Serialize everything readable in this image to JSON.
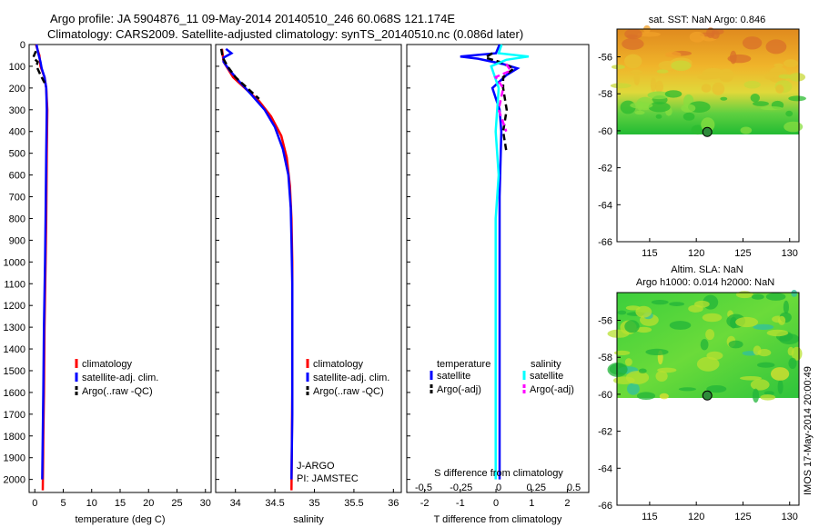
{
  "title": {
    "line1": "Argo profile: JA 5904876_11 09-May-2014 20140510_246 60.068S 121.174E",
    "line2": "Climatology: CARS2009. Satellite-adjusted climatology: synTS_20140510.nc (0.086d later)"
  },
  "credit": "IMOS 17-May-2014 20:00:49",
  "colors": {
    "climatology": "#ff0000",
    "satellite": "#0000ff",
    "argo": "#000000",
    "salinity_satellite": "#00ffff",
    "salinity_argo": "#ff00ff"
  },
  "chart_data": [
    {
      "type": "line",
      "name": "temperature",
      "xlabel": "temperature (deg C)",
      "ylabel": "",
      "xlim": [
        -1,
        31
      ],
      "ylim": [
        2060,
        0
      ],
      "xticks": [
        0,
        5,
        10,
        15,
        20,
        25,
        30
      ],
      "yticks": [
        0,
        100,
        200,
        300,
        400,
        500,
        600,
        700,
        800,
        900,
        1000,
        1100,
        1200,
        1300,
        1400,
        1500,
        1600,
        1700,
        1800,
        1900,
        2000
      ],
      "legend": [
        "climatology",
        "satellite-adj. clim.",
        "Argo(..raw -QC)"
      ],
      "series": [
        {
          "name": "climatology",
          "color": "#ff0000",
          "dash": false,
          "points": [
            [
              0.2,
              0
            ],
            [
              0.8,
              50
            ],
            [
              1.0,
              100
            ],
            [
              1.7,
              150
            ],
            [
              2.0,
              200
            ],
            [
              2.2,
              300
            ],
            [
              2.1,
              500
            ],
            [
              2.0,
              800
            ],
            [
              1.9,
              1000
            ],
            [
              1.7,
              1300
            ],
            [
              1.6,
              1600
            ],
            [
              1.5,
              1800
            ],
            [
              1.4,
              2050
            ]
          ]
        },
        {
          "name": "satellite-adj. clim.",
          "color": "#0000ff",
          "dash": false,
          "points": [
            [
              0.3,
              0
            ],
            [
              0.6,
              40
            ],
            [
              1.0,
              80
            ],
            [
              1.2,
              110
            ],
            [
              1.7,
              150
            ],
            [
              2.0,
              200
            ],
            [
              2.1,
              300
            ],
            [
              2.0,
              500
            ],
            [
              1.9,
              800
            ],
            [
              1.8,
              1000
            ],
            [
              1.6,
              1300
            ],
            [
              1.5,
              1600
            ],
            [
              1.4,
              1800
            ],
            [
              1.3,
              2000
            ]
          ]
        },
        {
          "name": "Argo(..raw -QC)",
          "color": "#000000",
          "dash": true,
          "points": [
            [
              0.2,
              30
            ],
            [
              -0.3,
              60
            ],
            [
              0.5,
              80
            ],
            [
              0.3,
              100
            ],
            [
              1.0,
              140
            ],
            [
              1.8,
              180
            ]
          ]
        }
      ]
    },
    {
      "type": "line",
      "name": "salinity",
      "xlabel": "salinity",
      "xlim": [
        33.75,
        36.1
      ],
      "ylim": [
        2060,
        0
      ],
      "xticks": [
        34,
        34.5,
        35,
        35.5,
        36
      ],
      "xticklabels": [
        "34",
        "34.5",
        "35",
        "35.5",
        "36"
      ],
      "legend": [
        "climatology",
        "satellite-adj. clim.",
        "Argo(..raw -QC)"
      ],
      "annotation": [
        "J-ARGO",
        "PI: JAMSTEC"
      ],
      "series": [
        {
          "name": "climatology",
          "color": "#ff0000",
          "dash": false,
          "points": [
            [
              33.83,
              20
            ],
            [
              33.85,
              80
            ],
            [
              33.97,
              150
            ],
            [
              34.12,
              200
            ],
            [
              34.3,
              260
            ],
            [
              34.45,
              330
            ],
            [
              34.58,
              420
            ],
            [
              34.65,
              520
            ],
            [
              34.69,
              650
            ],
            [
              34.71,
              800
            ],
            [
              34.72,
              1000
            ],
            [
              34.72,
              1300
            ],
            [
              34.72,
              1600
            ],
            [
              34.71,
              2050
            ]
          ]
        },
        {
          "name": "satellite-adj. clim.",
          "color": "#0000ff",
          "dash": false,
          "points": [
            [
              33.88,
              20
            ],
            [
              33.95,
              40
            ],
            [
              33.85,
              60
            ],
            [
              33.85,
              80
            ],
            [
              33.93,
              120
            ],
            [
              34.05,
              170
            ],
            [
              34.2,
              230
            ],
            [
              34.37,
              300
            ],
            [
              34.5,
              380
            ],
            [
              34.6,
              480
            ],
            [
              34.67,
              600
            ],
            [
              34.7,
              750
            ],
            [
              34.71,
              900
            ],
            [
              34.72,
              1100
            ],
            [
              34.72,
              1400
            ],
            [
              34.72,
              1700
            ],
            [
              34.71,
              2000
            ]
          ]
        },
        {
          "name": "Argo(..raw -QC)",
          "color": "#000000",
          "dash": true,
          "points": [
            [
              33.82,
              20
            ],
            [
              33.84,
              60
            ],
            [
              33.9,
              100
            ],
            [
              34.0,
              150
            ],
            [
              34.15,
              200
            ],
            [
              34.3,
              250
            ]
          ]
        }
      ]
    },
    {
      "type": "line",
      "name": "difference",
      "xlabel": "T difference from climatology",
      "top_label": "S difference from climatology",
      "xlim": [
        -2.5,
        2.6
      ],
      "ylim": [
        2060,
        0
      ],
      "xticks": [
        -2,
        -1,
        0,
        1,
        2
      ],
      "sticks": [
        -0.5,
        -0.25,
        0,
        0.25,
        0.5
      ],
      "sticklabels": [
        "-0.5",
        "-0.25",
        "0",
        "0.25",
        "0.5"
      ],
      "legend_headers": [
        "temperature",
        "salinity"
      ],
      "legend": [
        "satellite",
        "Argo(-adj)",
        "satellite",
        "Argo(-adj)"
      ],
      "series": [
        {
          "name": "temperature satellite",
          "color": "#0000ff",
          "dash": false,
          "units": "T",
          "points": [
            [
              0.1,
              0
            ],
            [
              0.0,
              40
            ],
            [
              -1.0,
              55
            ],
            [
              -0.5,
              65
            ],
            [
              0.2,
              90
            ],
            [
              0.6,
              110
            ],
            [
              0.3,
              140
            ],
            [
              -0.1,
              200
            ],
            [
              0.1,
              300
            ],
            [
              0.15,
              400
            ],
            [
              0.1,
              700
            ],
            [
              0.1,
              1000
            ],
            [
              0.1,
              1400
            ],
            [
              0.1,
              1800
            ],
            [
              0.1,
              2000
            ]
          ]
        },
        {
          "name": "temperature Argo(-adj)",
          "color": "#000000",
          "dash": true,
          "units": "T",
          "points": [
            [
              -0.1,
              40
            ],
            [
              -0.3,
              60
            ],
            [
              0.1,
              80
            ],
            [
              0.5,
              110
            ],
            [
              0.2,
              150
            ],
            [
              0.2,
              200
            ],
            [
              0.3,
              300
            ],
            [
              0.2,
              400
            ],
            [
              0.3,
              500
            ]
          ]
        },
        {
          "name": "salinity satellite",
          "color": "#00ffff",
          "dash": false,
          "units": "S",
          "points": [
            [
              0.02,
              0
            ],
            [
              0.0,
              40
            ],
            [
              0.2,
              55
            ],
            [
              0.05,
              70
            ],
            [
              -0.05,
              100
            ],
            [
              0.0,
              200
            ],
            [
              -0.02,
              400
            ],
            [
              0.0,
              600
            ],
            [
              -0.02,
              800
            ],
            [
              -0.02,
              1200
            ],
            [
              -0.02,
              1600
            ],
            [
              -0.02,
              2000
            ]
          ]
        },
        {
          "name": "salinity Argo(-adj)",
          "color": "#ff00ff",
          "dash": true,
          "units": "S",
          "points": [
            [
              0.05,
              90
            ],
            [
              0.08,
              120
            ],
            [
              -0.02,
              150
            ],
            [
              0.03,
              200
            ],
            [
              0.0,
              300
            ],
            [
              0.05,
              400
            ]
          ]
        }
      ]
    },
    {
      "type": "heatmap",
      "name": "sst_map",
      "title": "sat. SST: NaN Argo: 0.846",
      "xlim": [
        111.5,
        131
      ],
      "ylim": [
        -66,
        -54.5
      ],
      "xticks": [
        115,
        120,
        125,
        130
      ],
      "yticks": [
        -56,
        -58,
        -60,
        -62,
        -64,
        -66
      ],
      "data_lat_range": [
        -60.2,
        -54.5
      ],
      "marker": {
        "lon": 121.174,
        "lat": -60.068
      }
    },
    {
      "type": "heatmap",
      "name": "sla_map",
      "title_line1": "Altim. SLA: NaN",
      "title_line2": "Argo h1000: 0.014 h2000: NaN",
      "xlim": [
        111.5,
        131
      ],
      "ylim": [
        -66,
        -54.5
      ],
      "xticks": [
        115,
        120,
        125,
        130
      ],
      "yticks": [
        -56,
        -58,
        -60,
        -62,
        -64,
        -66
      ],
      "data_lat_range": [
        -60.2,
        -54.5
      ],
      "marker": {
        "lon": 121.174,
        "lat": -60.068
      }
    }
  ]
}
